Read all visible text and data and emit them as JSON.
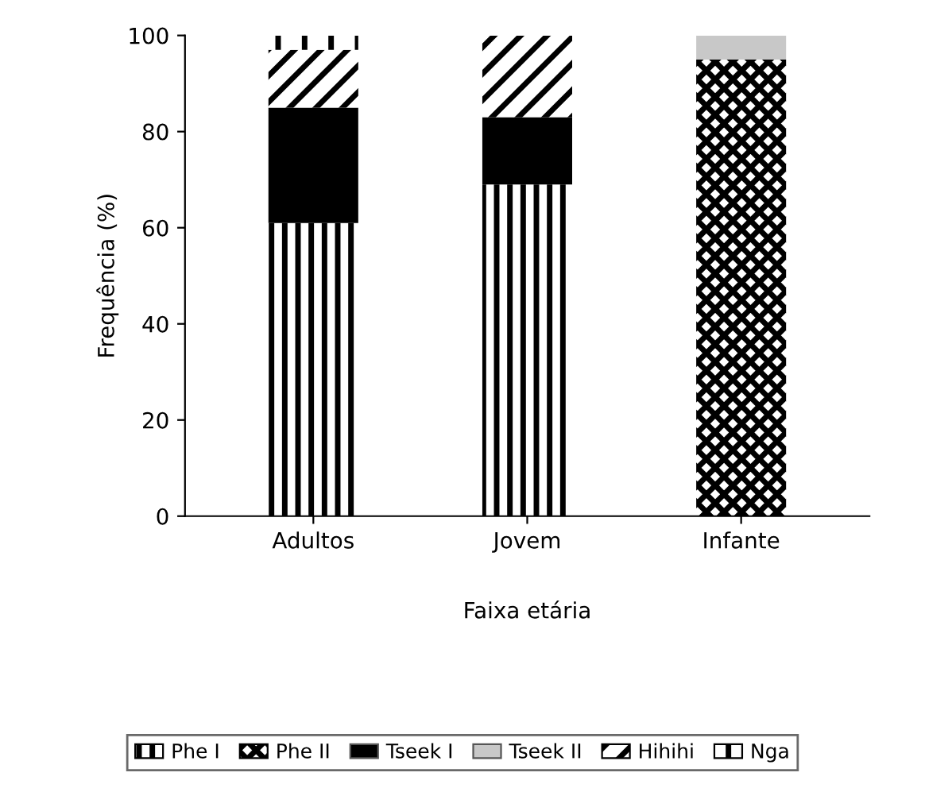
{
  "chart_data": {
    "type": "bar",
    "stacked": true,
    "xlabel": "Faixa etária",
    "ylabel": "Frequência (%)",
    "categories": [
      "Adultos",
      "Jovem",
      "Infante"
    ],
    "series": [
      {
        "name": "Phe I",
        "color": "#000000",
        "values": [
          61,
          69,
          null
        ]
      },
      {
        "name": "Phe II",
        "color": "#000000",
        "values": [
          null,
          null,
          95
        ]
      },
      {
        "name": "Tseek I",
        "color": "#000000",
        "values": [
          24,
          14,
          null
        ]
      },
      {
        "name": "Tseek II",
        "color": "#c8c8c8",
        "values": [
          null,
          null,
          5
        ]
      },
      {
        "name": "Hihihi",
        "color": "#000000",
        "values": [
          12,
          17,
          null
        ]
      },
      {
        "name": "Nga",
        "color": "#000000",
        "values": [
          3,
          null,
          null
        ]
      }
    ],
    "ylim": [
      0,
      100
    ],
    "yticks": [
      0,
      20,
      40,
      60,
      80,
      100
    ],
    "grid": false,
    "legend": "bottom"
  }
}
